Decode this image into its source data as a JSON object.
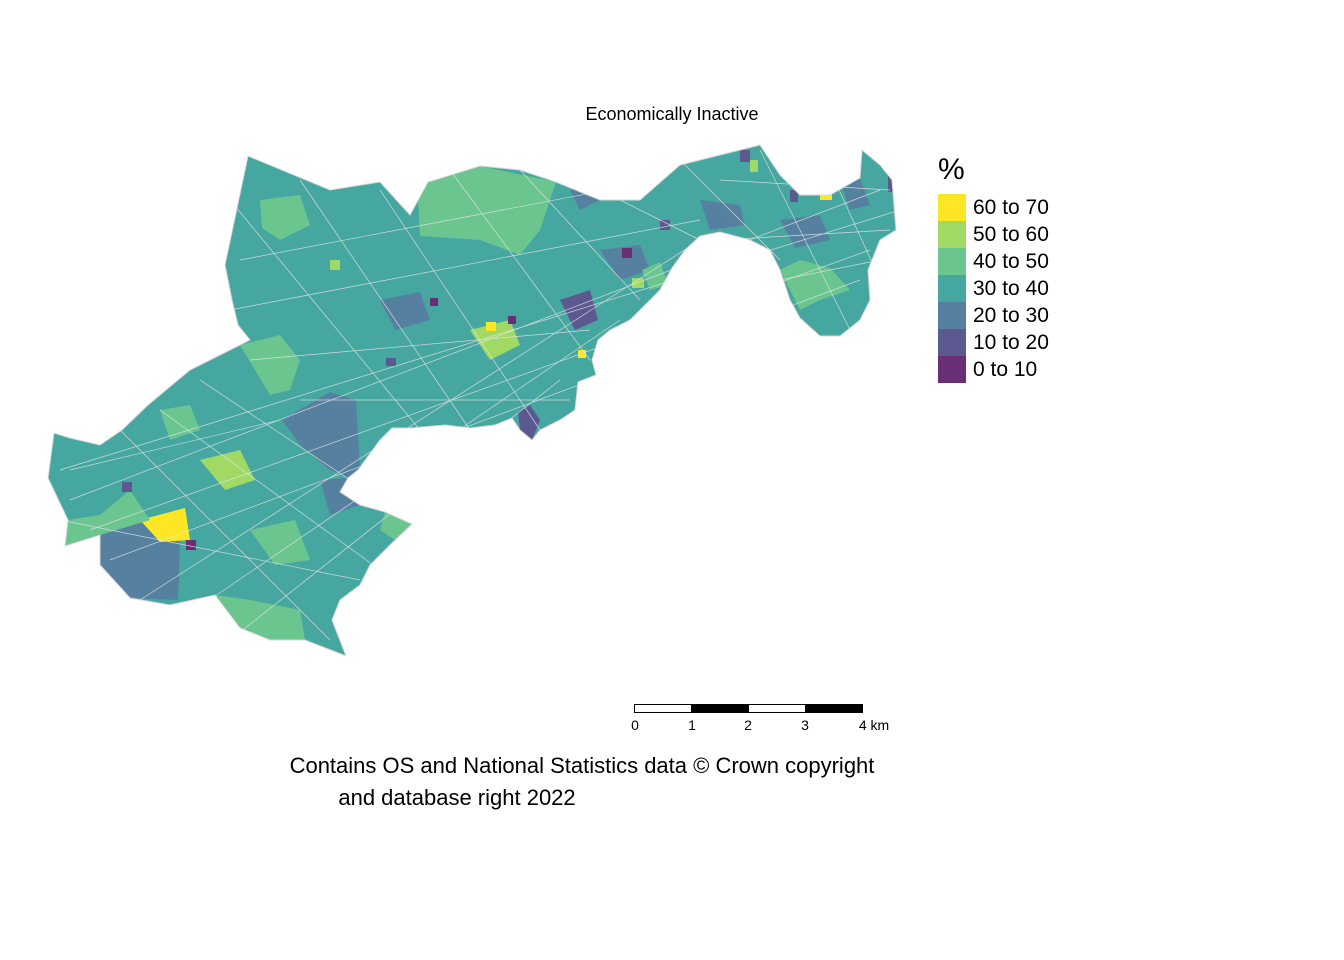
{
  "map": {
    "title": "Economically Inactive"
  },
  "legend": {
    "title": "%",
    "items": [
      {
        "label": "60 to 70",
        "color": "#fde725"
      },
      {
        "label": "50 to 60",
        "color": "#a0da64"
      },
      {
        "label": "40 to 50",
        "color": "#6ac58f"
      },
      {
        "label": "30 to 40",
        "color": "#46a7a0"
      },
      {
        "label": "20 to 30",
        "color": "#5680a0"
      },
      {
        "label": "10 to 20",
        "color": "#5c5991"
      },
      {
        "label": "0 to 10",
        "color": "#6a2e74"
      }
    ]
  },
  "scalebar": {
    "ticks": [
      "0",
      "1",
      "2",
      "3",
      "4 km"
    ]
  },
  "caption": {
    "line1": "Contains OS and National Statistics data © Crown copyright",
    "line2": "and database right 2022"
  }
}
